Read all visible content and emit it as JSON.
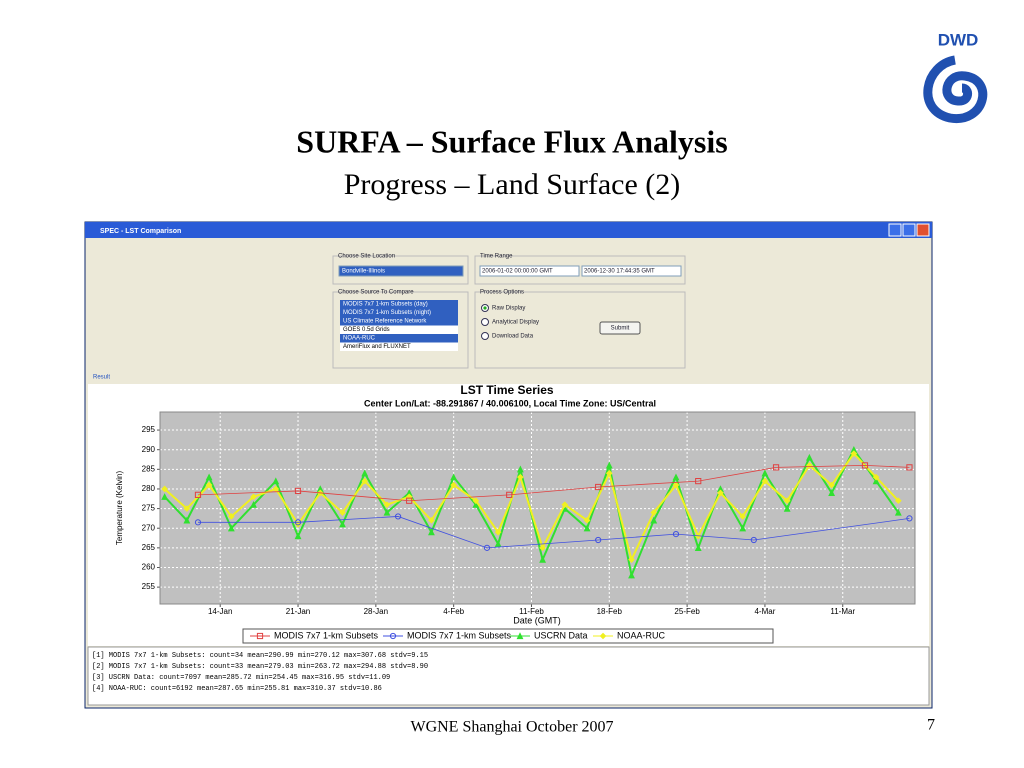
{
  "slide": {
    "logo": "DWD",
    "title": "SURFA – Surface Flux Analysis",
    "subtitle": "Progress – Land Surface (2)",
    "footer": "WGNE Shanghai October 2007",
    "page": "7"
  },
  "window": {
    "title": "SPEC - LST Comparison",
    "site_label": "Choose Site Location",
    "site": "Bondville-Illinois",
    "time_label": "Time Range",
    "time_start": "2006-01-02 00:00:00 GMT",
    "time_end": "2006-12-30 17:44:35 GMT",
    "source_label": "Choose Source To Compare",
    "sources": [
      "MODIS 7x7 1-km Subsets (day)",
      "MODIS 7x7 1-km Subsets (night)",
      "US Climate Reference Network",
      "GOES 0.5d Grids",
      "NOAA-RUC",
      "AmeriFlux and FLUXNET"
    ],
    "selected_sources": [
      true,
      true,
      true,
      false,
      true,
      false
    ],
    "process_label": "Process Options",
    "options": [
      "Raw Display",
      "Analytical Display",
      "Download Data"
    ],
    "submit": "Submit",
    "result_label": "Result",
    "stats": [
      "[1] MODIS 7x7 1-km Subsets:      count=34 mean=290.99 min=270.12 max=307.68 stdv=9.15",
      "[2] MODIS 7x7 1-km Subsets:      count=33 mean=279.03 min=263.72 max=294.88 stdv=8.90",
      "[3] USCRN Data:          count=7097 mean=285.72 min=254.45 max=316.95 stdv=11.09",
      "[4] NOAA-RUC:    count=6192 mean=287.65 min=255.81 max=310.37 stdv=10.86"
    ]
  },
  "chart_data": {
    "type": "line",
    "title": "LST Time Series",
    "subtitle": "Center Lon/Lat: -88.291867 / 40.006100,  Local Time Zone: US/Central",
    "x_label": "Date (GMT)",
    "y_label": "Temperature (Kelvin)",
    "xlim": [
      "2006-01-08T14:00",
      "2006-03-17T12:00"
    ],
    "xticks": [
      {
        "value": "2006-01-14",
        "label": "14-Jan"
      },
      {
        "value": "2006-01-21",
        "label": "21-Jan"
      },
      {
        "value": "2006-01-28",
        "label": "28-Jan"
      },
      {
        "value": "2006-02-04",
        "label": "4-Feb"
      },
      {
        "value": "2006-02-11",
        "label": "11-Feb"
      },
      {
        "value": "2006-02-18",
        "label": "18-Feb"
      },
      {
        "value": "2006-02-25",
        "label": "25-Feb"
      },
      {
        "value": "2006-03-04",
        "label": "4-Mar"
      },
      {
        "value": "2006-03-11",
        "label": "11-Mar"
      }
    ],
    "ylim": [
      250.7,
      299.6
    ],
    "yticks": [
      255,
      260,
      265,
      270,
      275,
      280,
      285,
      290,
      295
    ],
    "grid": true,
    "series": [
      {
        "name": "MODIS 7x7 1-km Subsets",
        "color": "#e04040",
        "marker": "square",
        "x": [
          "2006-01-12",
          "2006-01-21",
          "2006-01-31",
          "2006-02-09",
          "2006-02-17",
          "2006-02-26",
          "2006-03-05",
          "2006-03-13",
          "2006-03-17"
        ],
        "values": [
          278.5,
          279.5,
          277,
          278.5,
          280.5,
          282,
          285.5,
          286,
          285.5
        ]
      },
      {
        "name": "MODIS 7x7 1-km Subsets",
        "color": "#4050e0",
        "marker": "circle",
        "x": [
          "2006-01-12",
          "2006-01-21",
          "2006-01-30",
          "2006-02-07",
          "2006-02-17",
          "2006-02-24",
          "2006-03-03",
          "2006-03-17"
        ],
        "values": [
          271.5,
          271.5,
          273,
          265,
          267,
          268.5,
          267,
          272.5
        ]
      },
      {
        "name": "USCRN Data",
        "color": "#30e030",
        "marker": "triangle",
        "x": [
          "2006-01-09",
          "2006-01-11",
          "2006-01-13",
          "2006-01-15",
          "2006-01-17",
          "2006-01-19",
          "2006-01-21",
          "2006-01-23",
          "2006-01-25",
          "2006-01-27",
          "2006-01-29",
          "2006-01-31",
          "2006-02-02",
          "2006-02-04",
          "2006-02-06",
          "2006-02-08",
          "2006-02-10",
          "2006-02-12",
          "2006-02-14",
          "2006-02-16",
          "2006-02-18",
          "2006-02-20",
          "2006-02-22",
          "2006-02-24",
          "2006-02-26",
          "2006-02-28",
          "2006-03-02",
          "2006-03-04",
          "2006-03-06",
          "2006-03-08",
          "2006-03-10",
          "2006-03-12",
          "2006-03-14",
          "2006-03-16"
        ],
        "values": [
          278,
          272,
          283,
          270,
          276,
          282,
          268,
          280,
          271,
          284,
          274,
          279,
          269,
          283,
          276,
          266,
          285,
          262,
          275,
          270,
          286,
          258,
          272,
          283,
          265,
          280,
          270,
          284,
          275,
          288,
          279,
          290,
          282,
          274
        ]
      },
      {
        "name": "NOAA-RUC",
        "color": "#f0f020",
        "marker": "diamond",
        "x": [
          "2006-01-09",
          "2006-01-11",
          "2006-01-13",
          "2006-01-15",
          "2006-01-17",
          "2006-01-19",
          "2006-01-21",
          "2006-01-23",
          "2006-01-25",
          "2006-01-27",
          "2006-01-29",
          "2006-01-31",
          "2006-02-02",
          "2006-02-04",
          "2006-02-06",
          "2006-02-08",
          "2006-02-10",
          "2006-02-12",
          "2006-02-14",
          "2006-02-16",
          "2006-02-18",
          "2006-02-20",
          "2006-02-22",
          "2006-02-24",
          "2006-02-26",
          "2006-02-28",
          "2006-03-02",
          "2006-03-04",
          "2006-03-06",
          "2006-03-08",
          "2006-03-10",
          "2006-03-12",
          "2006-03-14",
          "2006-03-16"
        ],
        "values": [
          280,
          275,
          281,
          273,
          278,
          280,
          271,
          279,
          274,
          282,
          276,
          278,
          272,
          281,
          277,
          269,
          283,
          265,
          276,
          272,
          284,
          262,
          274,
          281,
          268,
          279,
          273,
          282,
          277,
          286,
          281,
          289,
          283,
          277
        ]
      }
    ]
  }
}
